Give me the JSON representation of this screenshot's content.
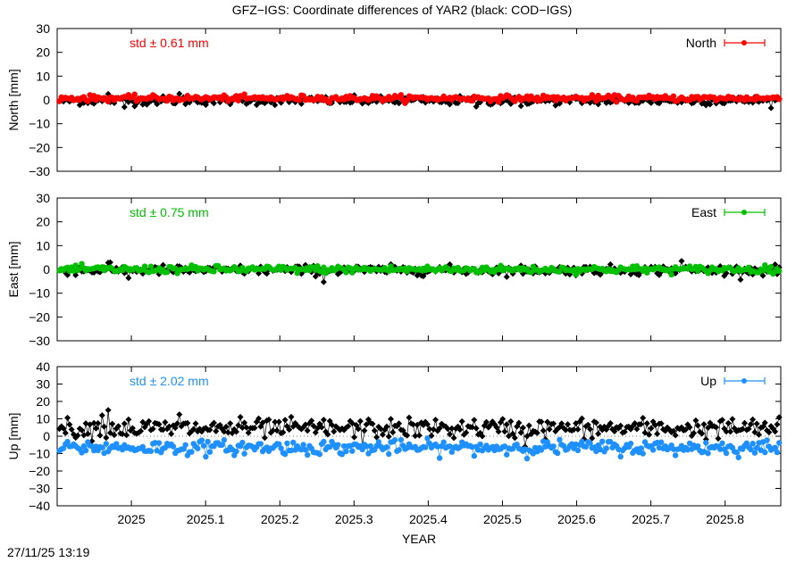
{
  "timestamp": "27/11/25 13:19",
  "chart_data": {
    "type": "scatter",
    "title": "GFZ−IGS: Coordinate differences of YAR2 (black: COD−IGS)",
    "xlabel": "YEAR",
    "xlim": [
      2024.9,
      2025.875
    ],
    "x_ticks": [
      "2025",
      "2025.1",
      "2025.2",
      "2025.3",
      "2025.4",
      "2025.5",
      "2025.6",
      "2025.7",
      "2025.8"
    ],
    "panels": [
      {
        "id": "north",
        "ylabel": "North [mm]",
        "ylim": [
          -30,
          30
        ],
        "y_ticks": [
          "30",
          "20",
          "10",
          "0",
          "−10",
          "−20",
          "−30"
        ],
        "std_label": "std ± 0.61 mm",
        "legend": "North",
        "color": "#ff0000",
        "series": [
          {
            "name": "North",
            "color": "#ff0000",
            "mean": 0.7,
            "std": 0.61
          },
          {
            "name": "COD−IGS",
            "color": "#000000",
            "mean": -0.3,
            "std": 0.9,
            "outliers": [
              [
                2024.99,
                -3.0
              ],
              [
                2025.065,
                2.6
              ],
              [
                2024.97,
                2.5
              ],
              [
                2025.465,
                -2.8
              ],
              [
                2025.525,
                -2.6
              ]
            ]
          }
        ]
      },
      {
        "id": "east",
        "ylabel": "East [mm]",
        "ylim": [
          -30,
          30
        ],
        "y_ticks": [
          "30",
          "20",
          "10",
          "0",
          "−10",
          "−20",
          "−30"
        ],
        "std_label": "std ± 0.75 mm",
        "legend": "East",
        "color": "#00c000",
        "series": [
          {
            "name": "East",
            "color": "#00c000",
            "mean": 0.0,
            "std": 0.75
          },
          {
            "name": "COD−IGS",
            "color": "#000000",
            "mean": -0.3,
            "std": 1.0,
            "outliers": [
              [
                2025.258,
                -5.3
              ],
              [
                2025.741,
                3.5
              ],
              [
                2024.97,
                2.8
              ],
              [
                2024.995,
                -3.6
              ]
            ]
          }
        ]
      },
      {
        "id": "up",
        "ylabel": "Up [mm]",
        "ylim": [
          -40,
          40
        ],
        "y_ticks": [
          "40",
          "30",
          "20",
          "10",
          "0",
          "−10",
          "−20",
          "−30",
          "−40"
        ],
        "std_label": "std ± 2.02 mm",
        "legend": "Up",
        "color": "#1e90ff",
        "series": [
          {
            "name": "Up",
            "color": "#1e90ff",
            "mean": -6.5,
            "std": 2.02
          },
          {
            "name": "COD−IGS",
            "color": "#000000",
            "mean": 4.5,
            "std": 2.8,
            "outliers": [
              [
                2024.968,
                15.0
              ],
              [
                2024.96,
                12.0
              ],
              [
                2025.065,
                12.5
              ],
              [
                2025.31,
                -6.0
              ],
              [
                2025.53,
                -6.0
              ]
            ]
          }
        ]
      }
    ]
  }
}
